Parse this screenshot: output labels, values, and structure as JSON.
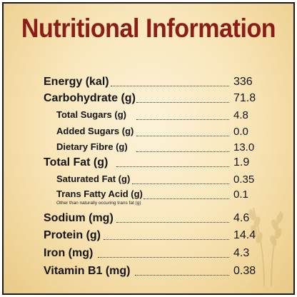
{
  "title": "Nutritional Information",
  "rows": [
    {
      "label": "Energy (kal)",
      "value": "336"
    },
    {
      "label": "Carbohydrate (g)",
      "value": "71.8"
    },
    {
      "label": "Total Sugars (g)",
      "value": "4.8"
    },
    {
      "label": "Added Sugars (g)",
      "value": "0.0"
    },
    {
      "label": "Dietary Fibre (g)",
      "value": "13.0"
    },
    {
      "label": "Total Fat (g)",
      "value": "1.9"
    },
    {
      "label": "Saturated Fat (g)",
      "value": "0.35"
    },
    {
      "label": "Trans Fatty Acid (g)",
      "value": "0.1"
    },
    {
      "label": "Sodium (mg)",
      "value": "4.6"
    },
    {
      "label": "Protein (g)",
      "value": "14.4"
    },
    {
      "label": "Iron (mg)",
      "value": "4.3"
    },
    {
      "label": "Vitamin B1 (mg)",
      "value": "0.38"
    }
  ],
  "trans_fat_note": "Other than naturally occuring trans fat (g)"
}
